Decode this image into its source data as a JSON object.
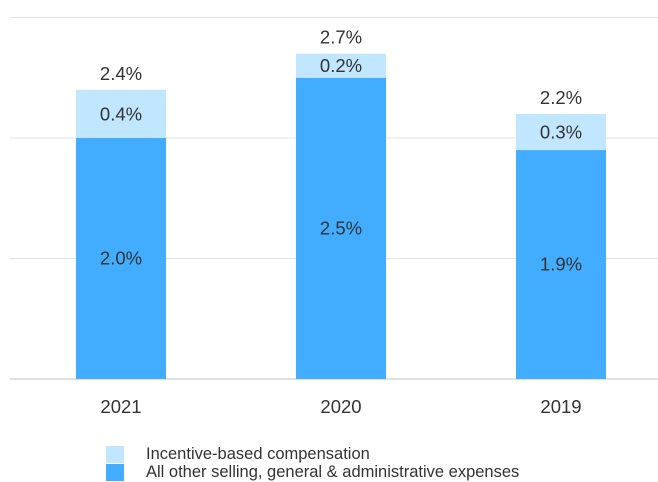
{
  "chart_data": {
    "type": "bar",
    "stacked": true,
    "categories": [
      "2021",
      "2020",
      "2019"
    ],
    "series": [
      {
        "name": "All other selling, general & administrative expenses",
        "values": [
          2.0,
          2.5,
          1.9
        ],
        "labels": [
          "2.0%",
          "2.5%",
          "1.9%"
        ],
        "color": "#42adff"
      },
      {
        "name": "Incentive-based compensation",
        "values": [
          0.4,
          0.2,
          0.3
        ],
        "labels": [
          "0.4%",
          "0.2%",
          "0.3%"
        ],
        "color": "#c1e6ff"
      }
    ],
    "totals": [
      2.4,
      2.7,
      2.2
    ],
    "total_labels": [
      "2.4%",
      "2.7%",
      "2.2%"
    ],
    "ylim": [
      0,
      3.0
    ],
    "grid": true,
    "legend_position": "bottom-left",
    "title": "",
    "xlabel": "",
    "ylabel": ""
  },
  "legend": {
    "items": [
      {
        "label": "Incentive-based compensation",
        "color": "#c1e6ff"
      },
      {
        "label": "All other selling, general & administrative expenses",
        "color": "#42adff"
      }
    ]
  },
  "colors": {
    "gridline": "#e3e3e3",
    "axis": "#d6d6d6",
    "text": "#333333"
  }
}
